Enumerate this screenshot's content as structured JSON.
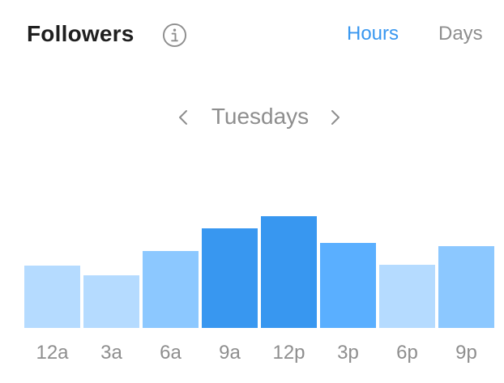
{
  "header": {
    "title": "Followers",
    "tabs": [
      {
        "label": "Hours",
        "active": true
      },
      {
        "label": "Days",
        "active": false
      }
    ],
    "info_icon": "info-icon"
  },
  "day_nav": {
    "label": "Tuesdays",
    "prev_icon": "chevron-left-icon",
    "next_icon": "chevron-right-icon"
  },
  "colors": {
    "active_tab": "#3897f0",
    "inactive_text": "#8e8e8e",
    "title": "#1f1f1f",
    "bar_light": "#b5dbff",
    "bar_medium": "#8cc8ff",
    "bar_mid": "#5aafff",
    "bar_dark": "#3897f0"
  },
  "chart_data": {
    "type": "bar",
    "categories": [
      "12a",
      "3a",
      "6a",
      "9a",
      "12p",
      "3p",
      "6p",
      "9p"
    ],
    "values": [
      77,
      65,
      95,
      123,
      138,
      105,
      78,
      101
    ],
    "ylim": [
      0,
      160
    ],
    "grid": false,
    "title": "",
    "xlabel": "",
    "ylabel": "",
    "bar_colors": [
      "#b5dbff",
      "#b5dbff",
      "#8cc8ff",
      "#3897f0",
      "#3897f0",
      "#5aafff",
      "#b5dbff",
      "#8cc8ff"
    ]
  }
}
